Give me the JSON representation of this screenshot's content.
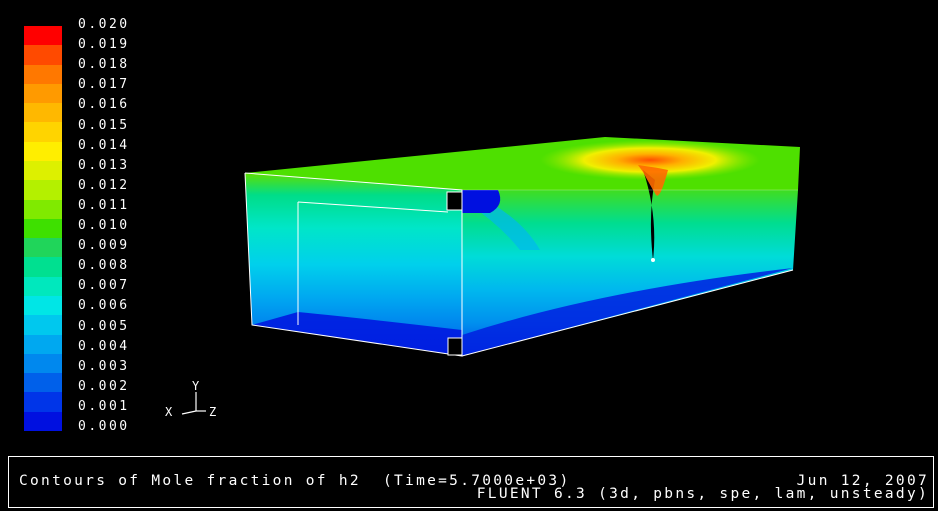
{
  "legend": {
    "levels": [
      "0.020",
      "0.019",
      "0.018",
      "0.017",
      "0.016",
      "0.015",
      "0.014",
      "0.013",
      "0.012",
      "0.011",
      "0.010",
      "0.009",
      "0.008",
      "0.007",
      "0.006",
      "0.005",
      "0.004",
      "0.003",
      "0.002",
      "0.001",
      "0.000"
    ],
    "colors": [
      "#ff0000",
      "#ff4a00",
      "#ff7800",
      "#ff9a00",
      "#ffb800",
      "#ffd400",
      "#ffee00",
      "#ddf000",
      "#b4f000",
      "#80ea00",
      "#3ee000",
      "#20d55a",
      "#00e090",
      "#00e8bd",
      "#00e6e6",
      "#00c8ee",
      "#00a8f0",
      "#0088ee",
      "#0060ea",
      "#0035e8",
      "#0010e0"
    ]
  },
  "axes": {
    "x": "X",
    "y": "Y",
    "z": "Z"
  },
  "caption": {
    "title": "Contours of Mole fraction of h2  (Time=5.7000e+03)",
    "date": "Jun 12, 2007",
    "solver": "FLUENT 6.3 (3d, pbns, spe, lam, unsteady)"
  }
}
